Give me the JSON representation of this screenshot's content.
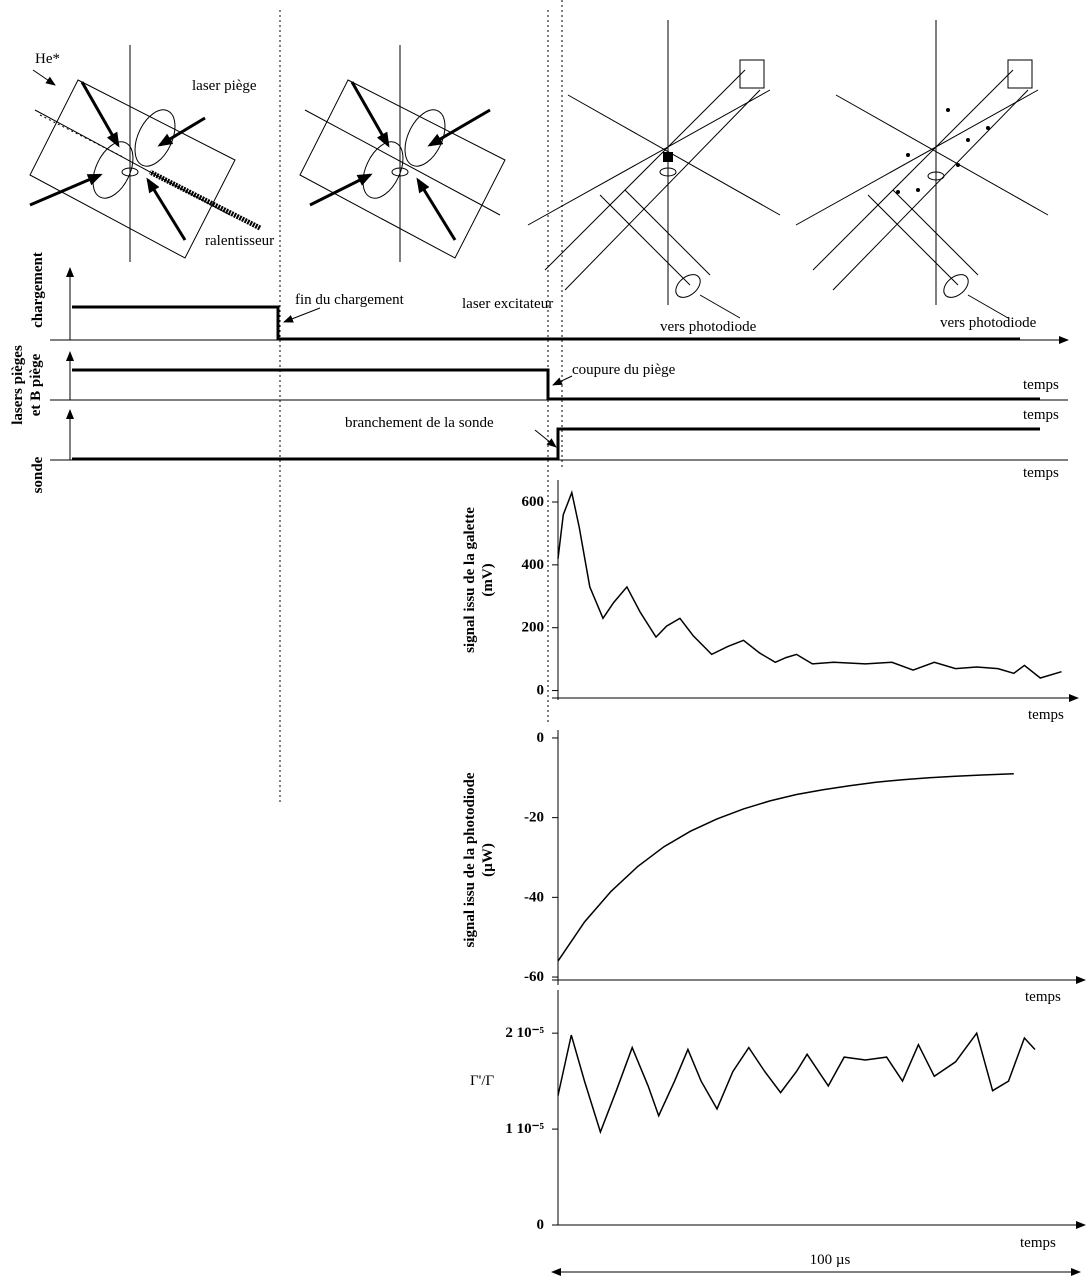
{
  "diagram": {
    "labels": [
      "He*",
      "laser piège",
      "ralentisseur",
      "laser excitateur",
      "vers photodiode",
      "vers photodiode"
    ]
  },
  "timing": {
    "rows": [
      [
        "chargement"
      ],
      [
        "lasers pièges",
        "et B piège"
      ],
      [
        "sonde"
      ]
    ],
    "annotations": [
      "fin du chargement",
      "coupure du piège",
      "branchement de la sonde"
    ],
    "axis_labels": [
      "temps",
      "temps",
      "temps"
    ]
  },
  "chart_data": [
    {
      "type": "line",
      "y_label": [
        "signal issu de la galette",
        "(mV)"
      ],
      "x_label": "temps",
      "color": "#000000",
      "xlim": [
        0,
        100
      ],
      "ylim": [
        -30,
        670
      ],
      "yticks": [
        0,
        200,
        400,
        600
      ],
      "x": [
        0,
        1,
        2.6,
        4,
        6,
        8.5,
        10.5,
        13,
        15.5,
        18.5,
        20.5,
        23,
        25.5,
        29,
        32,
        35,
        38,
        41,
        43,
        45,
        48,
        52,
        58,
        63,
        67,
        71,
        75,
        79,
        83,
        86,
        88,
        91,
        95
      ],
      "values": [
        420,
        560,
        630,
        520,
        330,
        230,
        280,
        330,
        250,
        170,
        205,
        230,
        175,
        115,
        140,
        160,
        120,
        90,
        105,
        115,
        85,
        90,
        85,
        90,
        65,
        90,
        70,
        75,
        70,
        55,
        80,
        40,
        60
      ]
    },
    {
      "type": "line",
      "y_label": [
        "signal issu de la photodiode",
        "(µW)"
      ],
      "x_label": "temps",
      "color": "#000000",
      "xlim": [
        0,
        100
      ],
      "ylim": [
        -62,
        2
      ],
      "yticks": [
        0,
        -20,
        -40,
        -60
      ],
      "x": [
        0,
        5,
        10,
        15,
        20,
        25,
        30,
        35,
        40,
        45,
        50,
        55,
        60,
        65,
        70,
        75,
        80,
        86
      ],
      "values": [
        -56,
        -46.2,
        -38.5,
        -32.3,
        -27.3,
        -23.4,
        -20.3,
        -17.8,
        -15.8,
        -14.2,
        -13,
        -12,
        -11.1,
        -10.5,
        -10,
        -9.6,
        -9.3,
        -9
      ]
    },
    {
      "type": "line",
      "y_label": [
        "Γ'/Γ"
      ],
      "x_label": "temps",
      "color": "#000000",
      "xlim": [
        0,
        100
      ],
      "ylim": [
        0,
        2.45e-05
      ],
      "yticks": [
        0,
        {
          "value": 1e-05,
          "label": "1 10⁻⁵"
        },
        {
          "value": 2e-05,
          "label": "2 10⁻⁵"
        }
      ],
      "x": [
        0,
        2.5,
        5,
        8,
        11,
        14,
        17,
        19,
        22,
        24.5,
        27,
        30,
        33,
        36,
        39,
        42,
        45,
        47,
        51,
        54,
        58,
        62,
        65,
        68,
        71,
        75,
        79,
        82,
        85,
        88,
        90
      ],
      "values": [
        1.35e-05,
        1.98e-05,
        1.5e-05,
        9.7e-06,
        1.4e-05,
        1.85e-05,
        1.45e-05,
        1.14e-05,
        1.5e-05,
        1.83e-05,
        1.5e-05,
        1.21e-05,
        1.6e-05,
        1.85e-05,
        1.6e-05,
        1.38e-05,
        1.6e-05,
        1.78e-05,
        1.45e-05,
        1.75e-05,
        1.72e-05,
        1.75e-05,
        1.5e-05,
        1.88e-05,
        1.55e-05,
        1.7e-05,
        2e-05,
        1.4e-05,
        1.5e-05,
        1.95e-05,
        1.83e-05
      ]
    }
  ],
  "duration": "100 µs"
}
